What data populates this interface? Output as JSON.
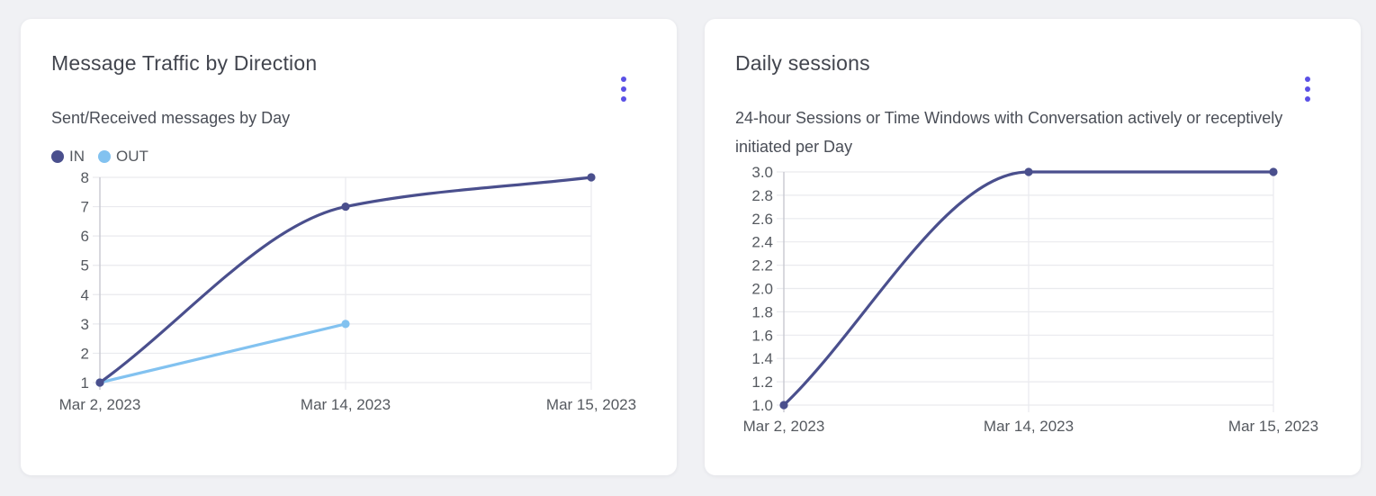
{
  "page": {
    "background": "#f0f1f4"
  },
  "colors": {
    "accent": "#5a50e6",
    "grid_line": "#e9eaee",
    "axis_line": "#c7c8d0",
    "tick_text": "#55595f",
    "series_in": "#4a4f8d",
    "series_out": "#82c2f0"
  },
  "icons": {
    "card_menu": "kebab-menu-icon"
  },
  "chart_data": [
    {
      "type": "line",
      "title": "Message Traffic by Direction",
      "subtitle": "Sent/Received messages by Day",
      "categories": [
        "Mar 2, 2023",
        "Mar 14, 2023",
        "Mar 15, 2023"
      ],
      "series": [
        {
          "name": "IN",
          "color": "#4a4f8d",
          "values": [
            1,
            7,
            8
          ]
        },
        {
          "name": "OUT",
          "color": "#82c2f0",
          "values": [
            1,
            3,
            null
          ]
        }
      ],
      "ylim": [
        1,
        8
      ],
      "ytick_labels": [
        "1",
        "2",
        "3",
        "4",
        "5",
        "6",
        "7",
        "8"
      ],
      "grid": true,
      "legend_position": "top-left",
      "interpolation": "monotone"
    },
    {
      "type": "line",
      "title": "Daily sessions",
      "subtitle": "24-hour Sessions or Time Windows with Conversation actively or receptively initiated per Day",
      "categories": [
        "Mar 2, 2023",
        "Mar 14, 2023",
        "Mar 15, 2023"
      ],
      "series": [
        {
          "name": "Daily sessions",
          "color": "#4a4f8d",
          "values": [
            1.0,
            3.0,
            3.0
          ]
        }
      ],
      "ylim": [
        1.0,
        3.0
      ],
      "ytick_labels": [
        "1.0",
        "1.2",
        "1.4",
        "1.6",
        "1.8",
        "2.0",
        "2.2",
        "2.4",
        "2.6",
        "2.8",
        "3.0"
      ],
      "grid": true,
      "legend_position": "none",
      "interpolation": "monotone"
    }
  ]
}
